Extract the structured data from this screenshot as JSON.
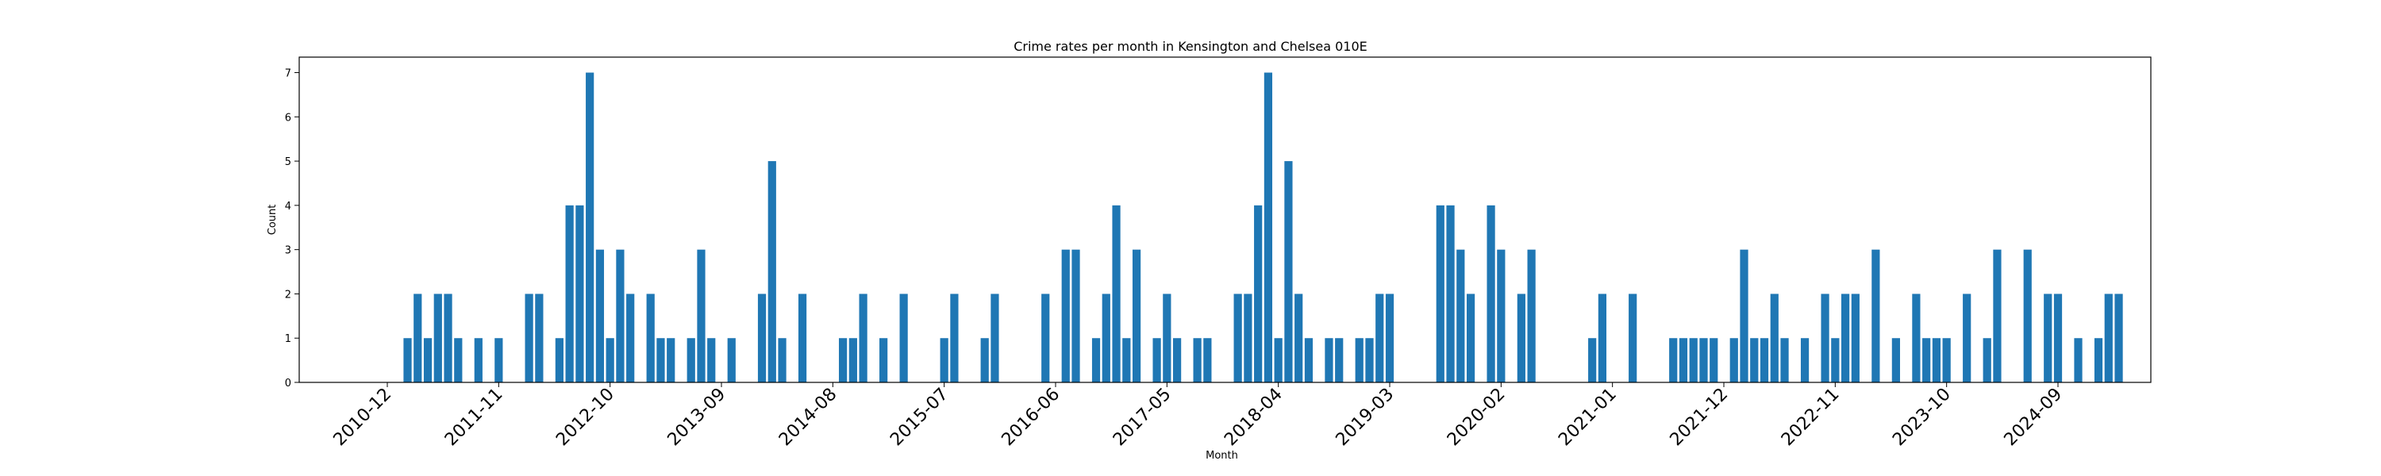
{
  "chart_data": {
    "type": "bar",
    "title": "Crime rates per month in Kensington and Chelsea 010E",
    "xlabel": "Month",
    "ylabel": "Count",
    "ylim": [
      0,
      7.35
    ],
    "yticks": [
      0,
      1,
      2,
      3,
      4,
      5,
      6,
      7
    ],
    "grid": false,
    "bar_color": "#1f77b4",
    "xticks": [
      "2010-12",
      "2011-11",
      "2012-10",
      "2013-09",
      "2014-08",
      "2015-07",
      "2016-06",
      "2017-05",
      "2018-04",
      "2019-03",
      "2020-02",
      "2021-01",
      "2021-12",
      "2022-11",
      "2023-10",
      "2024-09"
    ],
    "x": [
      "2011-02",
      "2011-03",
      "2011-04",
      "2011-05",
      "2011-06",
      "2011-07",
      "2011-09",
      "2011-11",
      "2012-02",
      "2012-03",
      "2012-05",
      "2012-06",
      "2012-07",
      "2012-08",
      "2012-09",
      "2012-10",
      "2012-11",
      "2012-12",
      "2013-02",
      "2013-03",
      "2013-04",
      "2013-06",
      "2013-07",
      "2013-08",
      "2013-10",
      "2014-01",
      "2014-02",
      "2014-03",
      "2014-05",
      "2014-09",
      "2014-10",
      "2014-11",
      "2015-01",
      "2015-03",
      "2015-07",
      "2015-08",
      "2015-11",
      "2015-12",
      "2016-05",
      "2016-07",
      "2016-08",
      "2016-10",
      "2016-11",
      "2016-12",
      "2017-01",
      "2017-02",
      "2017-04",
      "2017-05",
      "2017-06",
      "2017-08",
      "2017-09",
      "2017-12",
      "2018-01",
      "2018-02",
      "2018-03",
      "2018-04",
      "2018-05",
      "2018-06",
      "2018-07",
      "2018-09",
      "2018-10",
      "2018-12",
      "2019-01",
      "2019-02",
      "2019-03",
      "2019-08",
      "2019-09",
      "2019-10",
      "2019-11",
      "2020-01",
      "2020-02",
      "2020-04",
      "2020-05",
      "2020-11",
      "2020-12",
      "2021-03",
      "2021-07",
      "2021-08",
      "2021-09",
      "2021-10",
      "2021-11",
      "2022-01",
      "2022-02",
      "2022-03",
      "2022-04",
      "2022-05",
      "2022-06",
      "2022-08",
      "2022-10",
      "2022-11",
      "2022-12",
      "2023-01",
      "2023-03",
      "2023-05",
      "2023-07",
      "2023-08",
      "2023-09",
      "2023-10",
      "2023-12",
      "2024-02",
      "2024-03",
      "2024-06",
      "2024-08",
      "2024-09",
      "2024-11",
      "2025-01",
      "2025-02",
      "2025-03"
    ],
    "values": [
      1,
      2,
      1,
      2,
      2,
      1,
      1,
      1,
      2,
      2,
      1,
      4,
      4,
      7,
      3,
      1,
      3,
      2,
      2,
      1,
      1,
      1,
      3,
      1,
      1,
      2,
      5,
      1,
      2,
      1,
      1,
      2,
      1,
      2,
      1,
      2,
      1,
      2,
      2,
      3,
      3,
      1,
      2,
      4,
      1,
      3,
      1,
      2,
      1,
      1,
      1,
      2,
      2,
      4,
      7,
      1,
      5,
      2,
      1,
      1,
      1,
      1,
      1,
      2,
      2,
      4,
      4,
      3,
      2,
      4,
      3,
      2,
      3,
      1,
      2,
      2,
      1,
      1,
      1,
      1,
      1,
      1,
      3,
      1,
      1,
      2,
      1,
      1,
      2,
      1,
      2,
      2,
      3,
      1,
      2,
      1,
      1,
      1,
      2,
      1,
      3,
      3,
      2,
      2,
      1,
      1,
      2,
      2
    ]
  }
}
